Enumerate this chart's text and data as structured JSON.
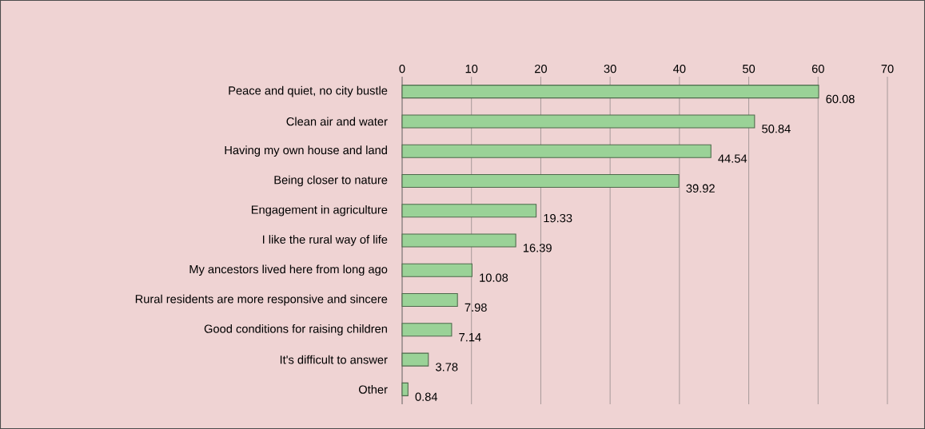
{
  "chart_data": {
    "type": "bar",
    "orientation": "horizontal",
    "categories": [
      "Peace and quiet, no city bustle",
      "Clean air and water",
      "Having my own house and land",
      "Being closer to nature",
      "Engagement in agriculture",
      "I like the rural way of life",
      "My ancestors lived here from long ago",
      "Rural residents are more responsive and sincere",
      "Good conditions for raising children",
      "It's difficult to answer",
      "Other"
    ],
    "values": [
      60.08,
      50.84,
      44.54,
      39.92,
      19.33,
      16.39,
      10.08,
      7.98,
      7.14,
      3.78,
      0.84
    ],
    "color": "#9ad297",
    "xlim": [
      0,
      70
    ],
    "xticks": [
      0,
      10,
      20,
      30,
      40,
      50,
      60,
      70
    ],
    "grid": "x",
    "data_labels": true
  }
}
